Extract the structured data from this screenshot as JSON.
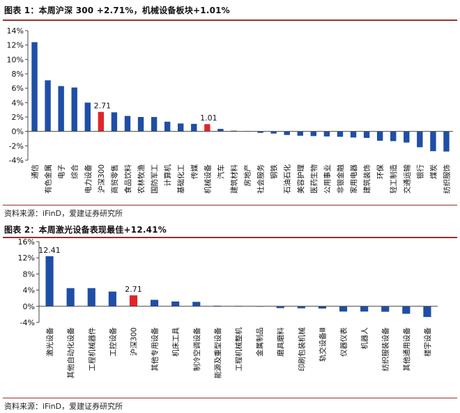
{
  "figure1": {
    "title": "图表 1：本周沪深 300 +2.71%，机械设备板块+1.01%",
    "source": "资料来源：iFinD，爱建证券研究所"
  },
  "figure2": {
    "title": "图表 2：本周激光设备表现最佳+12.41%",
    "source": "资料来源：iFinD，爱建证券研究所"
  },
  "colors": {
    "bar": "#1f4ea6",
    "highlight": "#e0262a",
    "rule": "#9a2d2d"
  },
  "chart_data": [
    {
      "type": "bar",
      "title": "",
      "xlabel": "",
      "ylabel": "",
      "ylim": [
        -4,
        14
      ],
      "yticks": [
        14,
        12,
        10,
        8,
        6,
        4,
        2,
        0,
        -2,
        -4
      ],
      "ytick_labels": [
        "14%",
        "12%",
        "10%",
        "8%",
        "6%",
        "4%",
        "2%",
        "0%",
        "-2%",
        "-4%"
      ],
      "unit": "%",
      "grid": false,
      "legend": "none",
      "categories": [
        "通信",
        "有色金属",
        "电子",
        "综合",
        "电力设备",
        "沪深300",
        "商贸零售",
        "食品饮料",
        "农林牧渔",
        "国防军工",
        "计算机",
        "基础化工",
        "传媒",
        "机械设备",
        "汽车",
        "建筑材料",
        "房地产",
        "社会服务",
        "钢铁",
        "石油石化",
        "美容护理",
        "医药生物",
        "公用事业",
        "非银金融",
        "家用电器",
        "建筑装饰",
        "环保",
        "轻工制造",
        "交通运输",
        "银行",
        "煤炭",
        "纺织服饰"
      ],
      "values": [
        12.4,
        7.1,
        6.3,
        6.1,
        4.0,
        2.71,
        2.65,
        2.15,
        2.0,
        2.0,
        1.35,
        1.1,
        1.05,
        1.01,
        0.35,
        0.1,
        0.05,
        -0.2,
        -0.3,
        -0.5,
        -0.6,
        -0.65,
        -0.7,
        -0.75,
        -0.85,
        -0.9,
        -1.3,
        -1.35,
        -1.55,
        -2.2,
        -2.75,
        -2.8
      ],
      "highlight": [
        "沪深300",
        "机械设备"
      ],
      "data_labels": [
        {
          "category": "沪深300",
          "text": "2.71"
        },
        {
          "category": "机械设备",
          "text": "1.01"
        }
      ]
    },
    {
      "type": "bar",
      "title": "",
      "xlabel": "",
      "ylabel": "",
      "ylim": [
        -4,
        16
      ],
      "yticks": [
        16,
        12,
        8,
        4,
        0,
        -4
      ],
      "ytick_labels": [
        "16%",
        "12%",
        "8%",
        "4%",
        "0%",
        "-4%"
      ],
      "unit": "%",
      "grid": false,
      "legend": "none",
      "categories": [
        "激光设备",
        "其他自动化设备",
        "工程机械器件",
        "工控设备",
        "沪深300",
        "其他专用设备",
        "机床工具",
        "制冷空调设备",
        "能源及重型设备",
        "工程机械整机",
        "金属制品",
        "磨具磨料",
        "印刷包装机械",
        "轨交设备Ⅲ",
        "仪器仪表",
        "机器人",
        "纺织服装设备",
        "其他通用设备",
        "楼宇设备"
      ],
      "values": [
        12.41,
        4.5,
        4.5,
        3.65,
        2.71,
        1.6,
        1.2,
        1.1,
        0.15,
        0.1,
        -0.1,
        -0.45,
        -0.5,
        -0.55,
        -1.3,
        -1.3,
        -1.35,
        -1.85,
        -2.65
      ],
      "highlight": [
        "沪深300"
      ],
      "data_labels": [
        {
          "category": "激光设备",
          "text": "12.41"
        },
        {
          "category": "沪深300",
          "text": "2.71"
        }
      ]
    }
  ]
}
